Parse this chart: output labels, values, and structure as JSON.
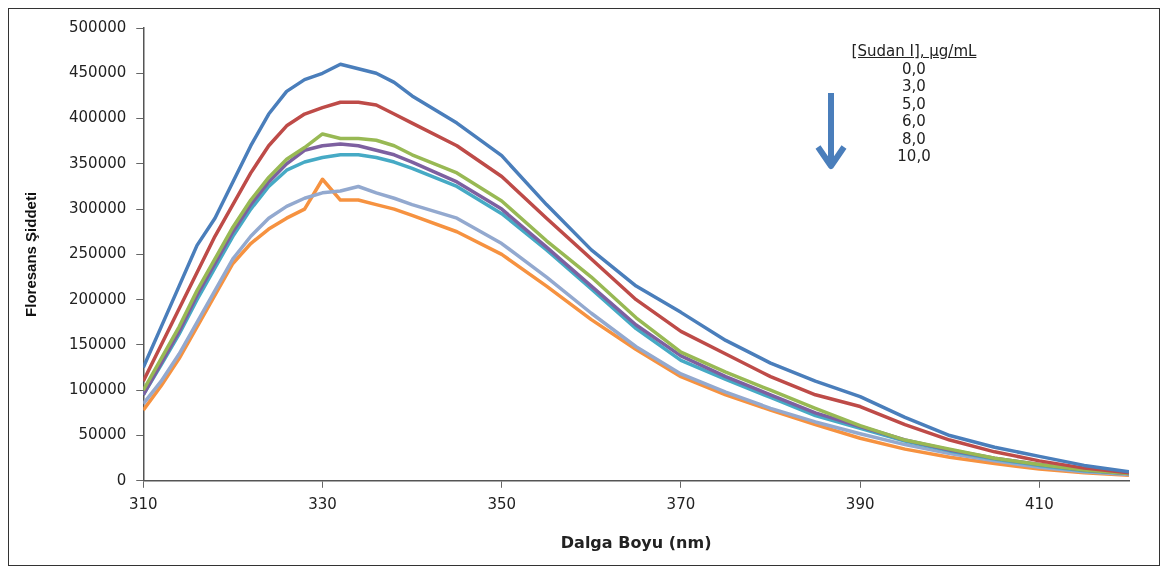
{
  "chart_data": {
    "type": "line",
    "xlabel": "Dalga Boyu (nm)",
    "ylabel": "Floresans Şiddeti",
    "x": [
      310,
      312,
      314,
      316,
      318,
      320,
      322,
      324,
      326,
      328,
      330,
      332,
      334,
      336,
      338,
      340,
      345,
      350,
      355,
      360,
      365,
      370,
      375,
      380,
      385,
      390,
      395,
      400,
      405,
      410,
      415,
      420
    ],
    "series": [
      {
        "color": "#4a7ebb",
        "values": [
          125000,
          170000,
          215000,
          260000,
          290000,
          330000,
          370000,
          405000,
          430000,
          443000,
          450000,
          460000,
          455000,
          450000,
          440000,
          425000,
          395000,
          359000,
          305000,
          255000,
          215000,
          186000,
          155000,
          130000,
          110000,
          93000,
          70000,
          50000,
          37000,
          27000,
          17000,
          10000
        ]
      },
      {
        "color": "#be4b48",
        "values": [
          110000,
          150000,
          190000,
          230000,
          270000,
          305000,
          340000,
          370000,
          392000,
          405000,
          412000,
          418000,
          418000,
          415000,
          405000,
          395000,
          370000,
          336000,
          290000,
          245000,
          200000,
          165000,
          140000,
          115000,
          95000,
          82000,
          62000,
          45000,
          32000,
          22000,
          14000,
          9000
        ]
      },
      {
        "color": "#98b954",
        "values": [
          100000,
          135000,
          170000,
          210000,
          245000,
          280000,
          310000,
          335000,
          355000,
          368000,
          383000,
          378000,
          378000,
          376000,
          370000,
          360000,
          340000,
          309000,
          265000,
          225000,
          180000,
          142000,
          120000,
          100000,
          80000,
          61000,
          45000,
          35000,
          25000,
          18000,
          12000,
          8000
        ]
      },
      {
        "color": "#7d60a0",
        "values": [
          95000,
          130000,
          165000,
          205000,
          240000,
          275000,
          305000,
          330000,
          350000,
          365000,
          370000,
          372000,
          370000,
          365000,
          360000,
          352000,
          330000,
          300000,
          258000,
          215000,
          172000,
          138000,
          115000,
          95000,
          75000,
          60000,
          45000,
          34000,
          25000,
          18000,
          12000,
          8000
        ]
      },
      {
        "color": "#46aac5",
        "values": [
          95000,
          128000,
          162000,
          200000,
          235000,
          270000,
          300000,
          325000,
          343000,
          352000,
          357000,
          360000,
          360000,
          357000,
          352000,
          345000,
          325000,
          295000,
          255000,
          212000,
          168000,
          133000,
          112000,
          92000,
          72000,
          58000,
          44000,
          33000,
          24000,
          17000,
          11000,
          8000
        ]
      },
      {
        "color": "#93a9cf",
        "values": [
          85000,
          110000,
          140000,
          175000,
          210000,
          245000,
          270000,
          290000,
          303000,
          312000,
          318000,
          320000,
          325000,
          318000,
          312000,
          305000,
          290000,
          262000,
          225000,
          185000,
          148000,
          118000,
          98000,
          80000,
          65000,
          52000,
          40000,
          30000,
          22000,
          15000,
          10000,
          7000
        ]
      },
      {
        "color": "#f69240",
        "values": [
          78000,
          105000,
          135000,
          170000,
          205000,
          240000,
          262000,
          278000,
          290000,
          300000,
          333000,
          310000,
          310000,
          305000,
          300000,
          293000,
          275000,
          250000,
          215000,
          178000,
          145000,
          115000,
          95000,
          78000,
          62000,
          47000,
          35000,
          26000,
          19000,
          13000,
          9000,
          6000
        ]
      }
    ],
    "xlim": [
      310,
      420
    ],
    "xticks": [
      310,
      330,
      350,
      370,
      390,
      410
    ],
    "ylim": [
      0,
      500000
    ],
    "yticks": [
      0,
      50000,
      100000,
      150000,
      200000,
      250000,
      300000,
      350000,
      400000,
      450000,
      500000
    ],
    "grid": false,
    "legend": false,
    "marker": "none",
    "line_style": "solid",
    "annotations": [
      "[Sudan I], μg/mL",
      "0,0",
      "3,0",
      "5,0",
      "6,0",
      "8,0",
      "10,0"
    ]
  }
}
